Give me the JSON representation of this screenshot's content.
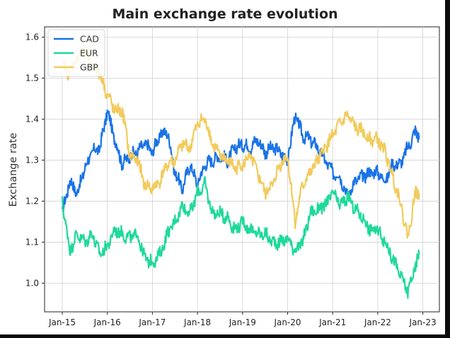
{
  "chart_data": {
    "type": "line",
    "title": "Main exchange rate evolution",
    "xlabel": "",
    "ylabel": "Exchange rate",
    "x_tick_labels": [
      "Jan-15",
      "Jan-16",
      "Jan-17",
      "Jan-18",
      "Jan-19",
      "Jan-20",
      "Jan-21",
      "Jan-22",
      "Jan-23"
    ],
    "y_tick_labels": [
      "1.0",
      "1.1",
      "1.2",
      "1.3",
      "1.4",
      "1.5",
      "1.6"
    ],
    "x_dates": [
      "2015-01",
      "2015-03",
      "2015-05",
      "2015-07",
      "2015-09",
      "2015-11",
      "2016-01",
      "2016-03",
      "2016-05",
      "2016-07",
      "2016-09",
      "2016-11",
      "2017-01",
      "2017-03",
      "2017-05",
      "2017-07",
      "2017-09",
      "2017-11",
      "2018-01",
      "2018-03",
      "2018-05",
      "2018-07",
      "2018-09",
      "2018-11",
      "2019-01",
      "2019-03",
      "2019-05",
      "2019-07",
      "2019-09",
      "2019-11",
      "2020-01",
      "2020-03",
      "2020-05",
      "2020-07",
      "2020-09",
      "2020-11",
      "2021-01",
      "2021-03",
      "2021-05",
      "2021-07",
      "2021-09",
      "2021-11",
      "2022-01",
      "2022-03",
      "2022-05",
      "2022-07",
      "2022-09",
      "2022-11",
      "2022-12"
    ],
    "ylim": [
      0.93,
      1.625
    ],
    "grid": true,
    "legend_position": "top-left",
    "series": [
      {
        "name": "CAD",
        "color": "#1a73e8",
        "values": [
          1.17,
          1.25,
          1.22,
          1.28,
          1.32,
          1.33,
          1.42,
          1.35,
          1.29,
          1.31,
          1.32,
          1.34,
          1.32,
          1.36,
          1.37,
          1.27,
          1.23,
          1.29,
          1.24,
          1.29,
          1.3,
          1.31,
          1.3,
          1.33,
          1.34,
          1.33,
          1.35,
          1.32,
          1.33,
          1.32,
          1.3,
          1.41,
          1.36,
          1.35,
          1.33,
          1.3,
          1.27,
          1.26,
          1.21,
          1.25,
          1.26,
          1.27,
          1.27,
          1.25,
          1.29,
          1.29,
          1.33,
          1.37,
          1.36
        ]
      },
      {
        "name": "EUR",
        "color": "#1fd99a",
        "values": [
          1.2,
          1.08,
          1.12,
          1.1,
          1.12,
          1.07,
          1.09,
          1.13,
          1.12,
          1.11,
          1.12,
          1.06,
          1.05,
          1.07,
          1.12,
          1.15,
          1.19,
          1.17,
          1.22,
          1.24,
          1.17,
          1.17,
          1.16,
          1.13,
          1.15,
          1.13,
          1.12,
          1.12,
          1.1,
          1.1,
          1.11,
          1.08,
          1.1,
          1.17,
          1.18,
          1.19,
          1.22,
          1.19,
          1.21,
          1.18,
          1.16,
          1.13,
          1.13,
          1.1,
          1.06,
          1.02,
          0.98,
          1.04,
          1.07
        ]
      },
      {
        "name": "GBP",
        "color": "#f2cb5c",
        "values": [
          1.53,
          1.51,
          1.55,
          1.57,
          1.53,
          1.51,
          1.46,
          1.42,
          1.42,
          1.31,
          1.3,
          1.24,
          1.23,
          1.25,
          1.29,
          1.3,
          1.34,
          1.33,
          1.39,
          1.4,
          1.34,
          1.31,
          1.3,
          1.28,
          1.29,
          1.31,
          1.27,
          1.22,
          1.24,
          1.29,
          1.31,
          1.15,
          1.24,
          1.27,
          1.3,
          1.33,
          1.36,
          1.39,
          1.41,
          1.38,
          1.37,
          1.35,
          1.35,
          1.32,
          1.26,
          1.2,
          1.11,
          1.22,
          1.22
        ]
      }
    ]
  }
}
